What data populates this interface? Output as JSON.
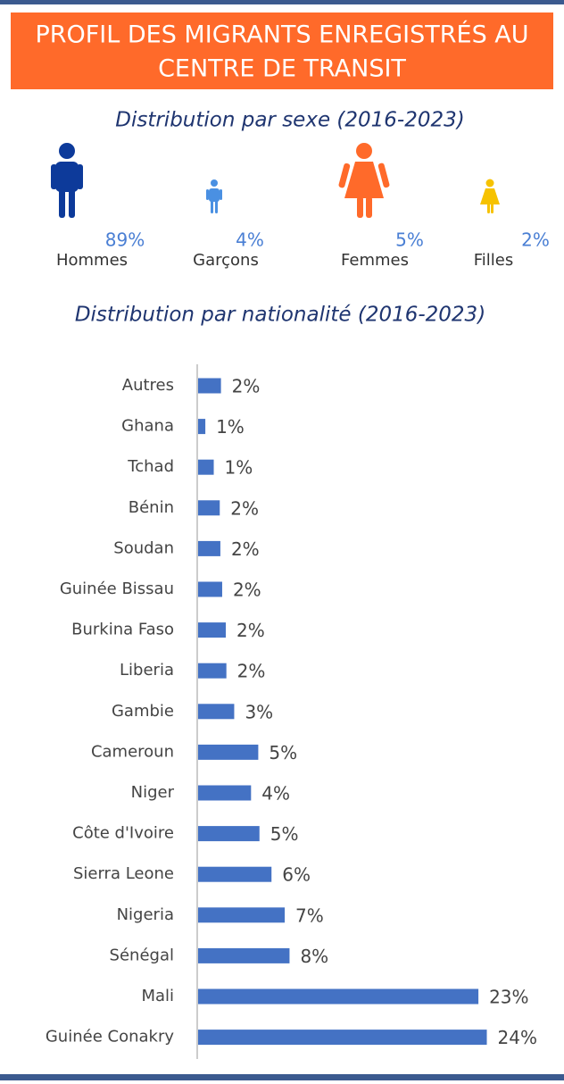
{
  "title": "PROFIL DES MIGRANTS ENREGISTRÉS AU CENTRE DE TRANSIT",
  "gender": {
    "subtitle": "Distribution par sexe (2016-2023)",
    "items": [
      {
        "label": "Hommes",
        "share": "89%"
      },
      {
        "label": "Garçons",
        "share": "4%"
      },
      {
        "label": "Femmes",
        "share": "5%"
      },
      {
        "label": "Filles",
        "share": "2%"
      }
    ]
  },
  "chart_data": {
    "type": "bar",
    "orientation": "horizontal",
    "title": "Distribution par nationalité (2016-2023)",
    "categories": [
      "Autres",
      "Ghana",
      "Tchad",
      "Bénin",
      "Soudan",
      "Guinée Bissau",
      "Burkina Faso",
      "Liberia",
      "Gambie",
      "Cameroun",
      "Niger",
      "Côte d'Ivoire",
      "Sierra Leone",
      "Nigeria",
      "Sénégal",
      "Mali",
      "Guinée Conakry"
    ],
    "values": [
      1.9,
      0.6,
      1.3,
      1.8,
      1.85,
      2.0,
      2.3,
      2.35,
      3.0,
      5.0,
      4.4,
      5.1,
      6.1,
      7.2,
      7.6,
      23.3,
      24
    ],
    "value_labels": [
      "2%",
      "1%",
      "1%",
      "2%",
      "2%",
      "2%",
      "2%",
      "2%",
      "3%",
      "5%",
      "4%",
      "5%",
      "6%",
      "7%",
      "8%",
      "23%",
      "24%"
    ],
    "color": "#4472c4",
    "xlim": [
      0,
      25
    ]
  }
}
